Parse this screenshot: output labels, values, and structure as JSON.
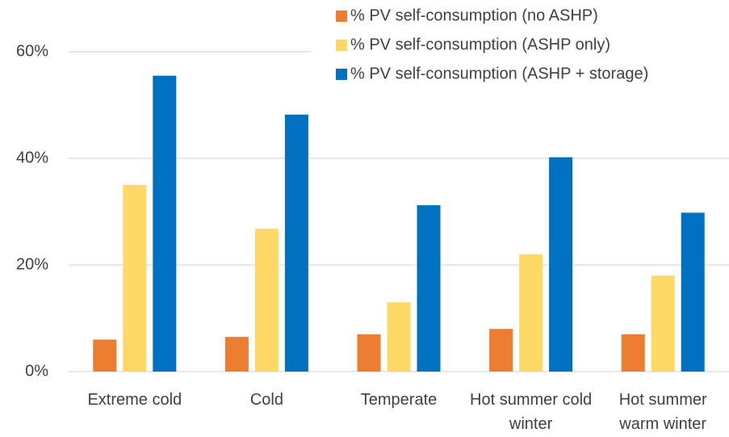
{
  "chart_data": {
    "type": "bar",
    "categories": [
      "Extreme cold",
      "Cold",
      "Temperate",
      "Hot summer cold winter",
      "Hot summer warm winter"
    ],
    "series": [
      {
        "name": "% PV self-consumption (no ASHP)",
        "color": "#ED7D31",
        "values": [
          6,
          6.5,
          7,
          8,
          7
        ]
      },
      {
        "name": "% PV self-consumption (ASHP only)",
        "color": "#FFD966",
        "values": [
          35,
          26.8,
          13,
          22,
          18
        ]
      },
      {
        "name": "% PV self-consumption (ASHP + storage)",
        "color": "#0070C0",
        "values": [
          55.5,
          48.2,
          31.2,
          40.2,
          29.8
        ]
      }
    ],
    "ylim": [
      0,
      60
    ],
    "yticks": [
      {
        "value": 0,
        "label": "0%"
      },
      {
        "value": 20,
        "label": "20%"
      },
      {
        "value": 40,
        "label": "40%"
      },
      {
        "value": 60,
        "label": "60%"
      }
    ],
    "grid": true,
    "legend": "top-right"
  }
}
